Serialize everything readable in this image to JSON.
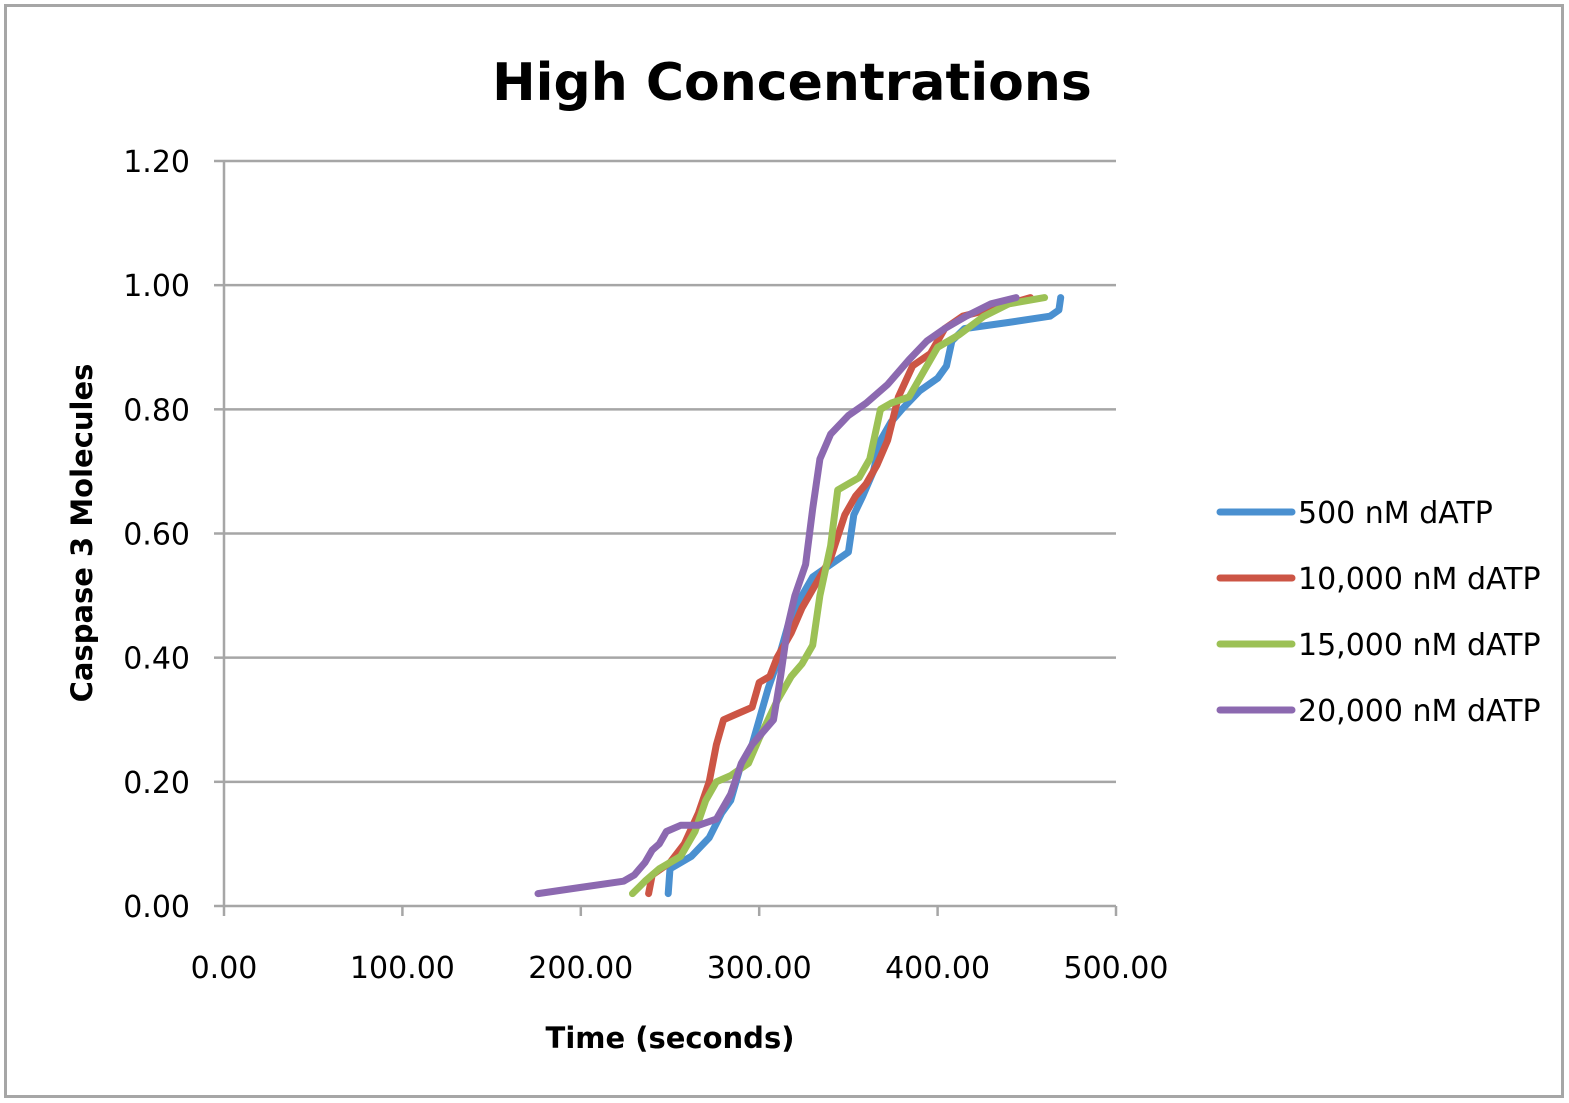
{
  "chart_data": {
    "type": "line",
    "title": "High Concentrations",
    "xlabel": "Time (seconds)",
    "ylabel": "Caspase 3 Molecules",
    "xlim": [
      0,
      500
    ],
    "ylim": [
      0,
      1.2
    ],
    "x_ticks": [
      "0.00",
      "100.00",
      "200.00",
      "300.00",
      "400.00",
      "500.00"
    ],
    "y_ticks": [
      "0.00",
      "0.20",
      "0.40",
      "0.60",
      "0.80",
      "1.00",
      "1.20"
    ],
    "grid": true,
    "legend_position": "right",
    "series": [
      {
        "name": "500 nM dATP",
        "color": "#4a90d0",
        "points": [
          [
            249,
            0.02
          ],
          [
            250,
            0.06
          ],
          [
            262,
            0.08
          ],
          [
            272,
            0.11
          ],
          [
            279,
            0.15
          ],
          [
            284,
            0.17
          ],
          [
            289,
            0.22
          ],
          [
            296,
            0.26
          ],
          [
            300,
            0.3
          ],
          [
            305,
            0.35
          ],
          [
            311,
            0.4
          ],
          [
            316,
            0.45
          ],
          [
            322,
            0.49
          ],
          [
            330,
            0.53
          ],
          [
            340,
            0.55
          ],
          [
            350,
            0.57
          ],
          [
            353,
            0.63
          ],
          [
            358,
            0.66
          ],
          [
            364,
            0.7
          ],
          [
            368,
            0.75
          ],
          [
            374,
            0.78
          ],
          [
            380,
            0.8
          ],
          [
            390,
            0.83
          ],
          [
            400,
            0.85
          ],
          [
            405,
            0.87
          ],
          [
            408,
            0.91
          ],
          [
            415,
            0.93
          ],
          [
            440,
            0.94
          ],
          [
            463,
            0.95
          ],
          [
            468,
            0.96
          ],
          [
            469,
            0.98
          ]
        ]
      },
      {
        "name": "10,000 nM dATP",
        "color": "#cc5545",
        "points": [
          [
            238,
            0.02
          ],
          [
            240,
            0.05
          ],
          [
            250,
            0.07
          ],
          [
            258,
            0.1
          ],
          [
            266,
            0.15
          ],
          [
            272,
            0.2
          ],
          [
            276,
            0.26
          ],
          [
            280,
            0.3
          ],
          [
            288,
            0.31
          ],
          [
            296,
            0.32
          ],
          [
            300,
            0.36
          ],
          [
            306,
            0.37
          ],
          [
            310,
            0.4
          ],
          [
            318,
            0.44
          ],
          [
            324,
            0.48
          ],
          [
            332,
            0.52
          ],
          [
            340,
            0.56
          ],
          [
            348,
            0.63
          ],
          [
            354,
            0.66
          ],
          [
            360,
            0.68
          ],
          [
            366,
            0.71
          ],
          [
            372,
            0.75
          ],
          [
            378,
            0.82
          ],
          [
            386,
            0.87
          ],
          [
            396,
            0.89
          ],
          [
            404,
            0.93
          ],
          [
            414,
            0.95
          ],
          [
            428,
            0.96
          ],
          [
            440,
            0.97
          ],
          [
            452,
            0.98
          ]
        ]
      },
      {
        "name": "15,000 nM dATP",
        "color": "#9cc155",
        "points": [
          [
            229,
            0.02
          ],
          [
            236,
            0.04
          ],
          [
            244,
            0.06
          ],
          [
            256,
            0.08
          ],
          [
            264,
            0.12
          ],
          [
            270,
            0.17
          ],
          [
            276,
            0.2
          ],
          [
            284,
            0.21
          ],
          [
            294,
            0.23
          ],
          [
            300,
            0.27
          ],
          [
            310,
            0.33
          ],
          [
            318,
            0.37
          ],
          [
            324,
            0.39
          ],
          [
            330,
            0.42
          ],
          [
            334,
            0.5
          ],
          [
            340,
            0.58
          ],
          [
            344,
            0.67
          ],
          [
            356,
            0.69
          ],
          [
            362,
            0.72
          ],
          [
            368,
            0.8
          ],
          [
            374,
            0.81
          ],
          [
            384,
            0.82
          ],
          [
            392,
            0.86
          ],
          [
            400,
            0.9
          ],
          [
            412,
            0.92
          ],
          [
            426,
            0.95
          ],
          [
            440,
            0.97
          ],
          [
            460,
            0.98
          ]
        ]
      },
      {
        "name": "20,000 nM dATP",
        "color": "#8c69b0",
        "points": [
          [
            176,
            0.02
          ],
          [
            200,
            0.03
          ],
          [
            224,
            0.04
          ],
          [
            230,
            0.05
          ],
          [
            236,
            0.07
          ],
          [
            240,
            0.09
          ],
          [
            244,
            0.1
          ],
          [
            248,
            0.12
          ],
          [
            256,
            0.13
          ],
          [
            266,
            0.13
          ],
          [
            276,
            0.14
          ],
          [
            284,
            0.18
          ],
          [
            290,
            0.23
          ],
          [
            296,
            0.26
          ],
          [
            302,
            0.28
          ],
          [
            308,
            0.3
          ],
          [
            312,
            0.37
          ],
          [
            316,
            0.45
          ],
          [
            320,
            0.5
          ],
          [
            326,
            0.55
          ],
          [
            330,
            0.64
          ],
          [
            334,
            0.72
          ],
          [
            340,
            0.76
          ],
          [
            350,
            0.79
          ],
          [
            360,
            0.81
          ],
          [
            372,
            0.84
          ],
          [
            384,
            0.88
          ],
          [
            394,
            0.91
          ],
          [
            404,
            0.93
          ],
          [
            416,
            0.95
          ],
          [
            430,
            0.97
          ],
          [
            444,
            0.98
          ]
        ]
      }
    ]
  }
}
